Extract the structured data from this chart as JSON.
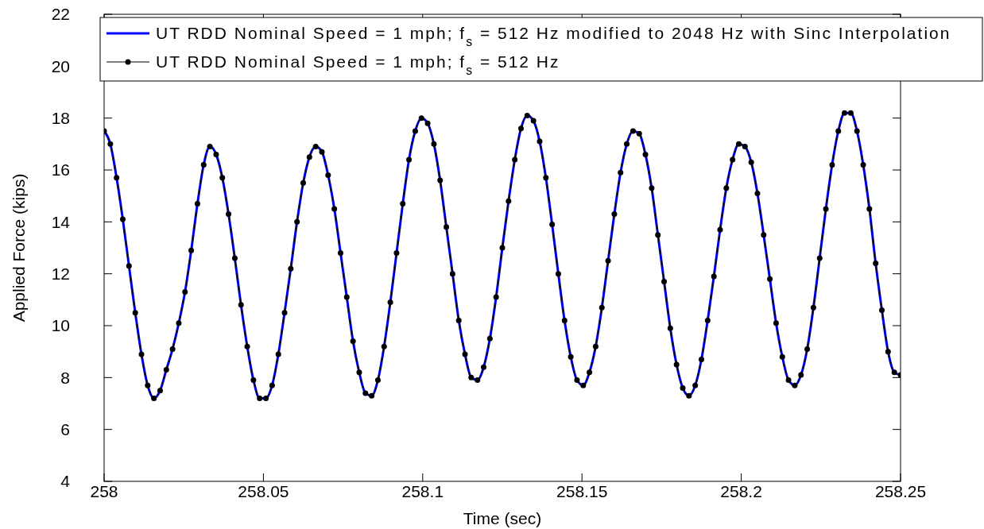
{
  "chart_data": {
    "type": "line",
    "xlabel": "Time (sec)",
    "ylabel": "Applied Force (kips)",
    "xlim": [
      258,
      258.25
    ],
    "xticks": [
      258,
      258.05,
      258.1,
      258.15,
      258.2,
      258.25
    ],
    "ylim": [
      4,
      22
    ],
    "yticks": [
      4,
      6,
      8,
      10,
      12,
      14,
      16,
      18,
      20,
      22
    ],
    "legend": "top right",
    "grid": false,
    "x": [
      258,
      258.00195,
      258.00391,
      258.00586,
      258.00781,
      258.00977,
      258.01172,
      258.01367,
      258.01563,
      258.01758,
      258.01953,
      258.02148,
      258.02344,
      258.02539,
      258.02734,
      258.0293,
      258.03125,
      258.0332,
      258.03516,
      258.03711,
      258.03906,
      258.04102,
      258.04297,
      258.04492,
      258.04688,
      258.04883,
      258.05078,
      258.05273,
      258.05469,
      258.05664,
      258.05859,
      258.06055,
      258.0625,
      258.06445,
      258.06641,
      258.06836,
      258.07031,
      258.07227,
      258.07422,
      258.07617,
      258.07813,
      258.08008,
      258.08203,
      258.08398,
      258.08594,
      258.08789,
      258.08984,
      258.0918,
      258.09375,
      258.0957,
      258.09766,
      258.09961,
      258.10156,
      258.10352,
      258.10547,
      258.10742,
      258.10938,
      258.11133,
      258.11328,
      258.11523,
      258.11719,
      258.11914,
      258.12109,
      258.12305,
      258.125,
      258.12695,
      258.12891,
      258.13086,
      258.13281,
      258.13477,
      258.13672,
      258.13867,
      258.14063,
      258.14258,
      258.14453,
      258.14648,
      258.14844,
      258.15039,
      258.15234,
      258.1543,
      258.15625,
      258.1582,
      258.16016,
      258.16211,
      258.16406,
      258.16602,
      258.16797,
      258.16992,
      258.17188,
      258.17383,
      258.17578,
      258.17773,
      258.17969,
      258.18164,
      258.18359,
      258.18555,
      258.1875,
      258.18945,
      258.19141,
      258.19336,
      258.19531,
      258.19727,
      258.19922,
      258.20117,
      258.20313,
      258.20508,
      258.20703,
      258.20898,
      258.21094,
      258.21289,
      258.21484,
      258.2168,
      258.21875,
      258.2207,
      258.22266,
      258.22461,
      258.22656,
      258.22852,
      258.23047,
      258.23242,
      258.23438,
      258.23633,
      258.23828,
      258.24023,
      258.24219,
      258.24414,
      258.24609,
      258.24805,
      258.25
    ],
    "series": [
      {
        "name": "UT RDD Nominal Speed = 1 mph; f$_{s}$ = 512 Hz modified to 2048 Hz with Sinc Interpolation",
        "color": "#0000ff",
        "marker": "none",
        "values": [
          17.5,
          17.0,
          15.7,
          14.1,
          12.3,
          10.5,
          8.9,
          7.7,
          7.2,
          7.5,
          8.3,
          9.1,
          10.1,
          11.3,
          12.9,
          14.7,
          16.2,
          16.9,
          16.6,
          15.7,
          14.3,
          12.6,
          10.8,
          9.2,
          7.9,
          7.2,
          7.2,
          7.7,
          8.9,
          10.5,
          12.2,
          14.0,
          15.5,
          16.5,
          16.9,
          16.7,
          15.8,
          14.5,
          12.8,
          11.1,
          9.4,
          8.2,
          7.4,
          7.3,
          7.9,
          9.2,
          10.9,
          12.8,
          14.7,
          16.4,
          17.5,
          18.0,
          17.8,
          17.0,
          15.6,
          13.8,
          12.0,
          10.2,
          8.9,
          8.0,
          7.9,
          8.4,
          9.5,
          11.1,
          13.0,
          14.8,
          16.4,
          17.6,
          18.1,
          17.9,
          17.1,
          15.7,
          13.9,
          12.0,
          10.2,
          8.8,
          7.9,
          7.7,
          8.2,
          9.2,
          10.7,
          12.5,
          14.3,
          15.9,
          17.0,
          17.5,
          17.4,
          16.6,
          15.3,
          13.5,
          11.7,
          9.9,
          8.5,
          7.6,
          7.3,
          7.7,
          8.7,
          10.2,
          11.9,
          13.7,
          15.3,
          16.4,
          17.0,
          16.9,
          16.3,
          15.1,
          13.5,
          11.8,
          10.1,
          8.8,
          7.9,
          7.7,
          8.1,
          9.1,
          10.7,
          12.6,
          14.5,
          16.2,
          17.5,
          18.2,
          18.2,
          17.5,
          16.2,
          14.5,
          12.4,
          10.6,
          9.0,
          8.2,
          8.1
        ]
      },
      {
        "name": "UT RDD Nominal Speed = 1 mph; f$_{s}$ = 512 Hz",
        "color": "#000000",
        "marker": "circle",
        "values": [
          17.5,
          17.0,
          15.7,
          14.1,
          12.3,
          10.5,
          8.9,
          7.7,
          7.2,
          7.5,
          8.3,
          9.1,
          10.1,
          11.3,
          12.9,
          14.7,
          16.2,
          16.9,
          16.6,
          15.7,
          14.3,
          12.6,
          10.8,
          9.2,
          7.9,
          7.2,
          7.2,
          7.7,
          8.9,
          10.5,
          12.2,
          14.0,
          15.5,
          16.5,
          16.9,
          16.7,
          15.8,
          14.5,
          12.8,
          11.1,
          9.4,
          8.2,
          7.4,
          7.3,
          7.9,
          9.2,
          10.9,
          12.8,
          14.7,
          16.4,
          17.5,
          18.0,
          17.8,
          17.0,
          15.6,
          13.8,
          12.0,
          10.2,
          8.9,
          8.0,
          7.9,
          8.4,
          9.5,
          11.1,
          13.0,
          14.8,
          16.4,
          17.6,
          18.1,
          17.9,
          17.1,
          15.7,
          13.9,
          12.0,
          10.2,
          8.8,
          7.9,
          7.7,
          8.2,
          9.2,
          10.7,
          12.5,
          14.3,
          15.9,
          17.0,
          17.5,
          17.4,
          16.6,
          15.3,
          13.5,
          11.7,
          9.9,
          8.5,
          7.6,
          7.3,
          7.7,
          8.7,
          10.2,
          11.9,
          13.7,
          15.3,
          16.4,
          17.0,
          16.9,
          16.3,
          15.1,
          13.5,
          11.8,
          10.1,
          8.8,
          7.9,
          7.7,
          8.1,
          9.1,
          10.7,
          12.6,
          14.5,
          16.2,
          17.5,
          18.2,
          18.2,
          17.5,
          16.2,
          14.5,
          12.4,
          10.6,
          9.0,
          8.2,
          8.1
        ]
      }
    ]
  }
}
